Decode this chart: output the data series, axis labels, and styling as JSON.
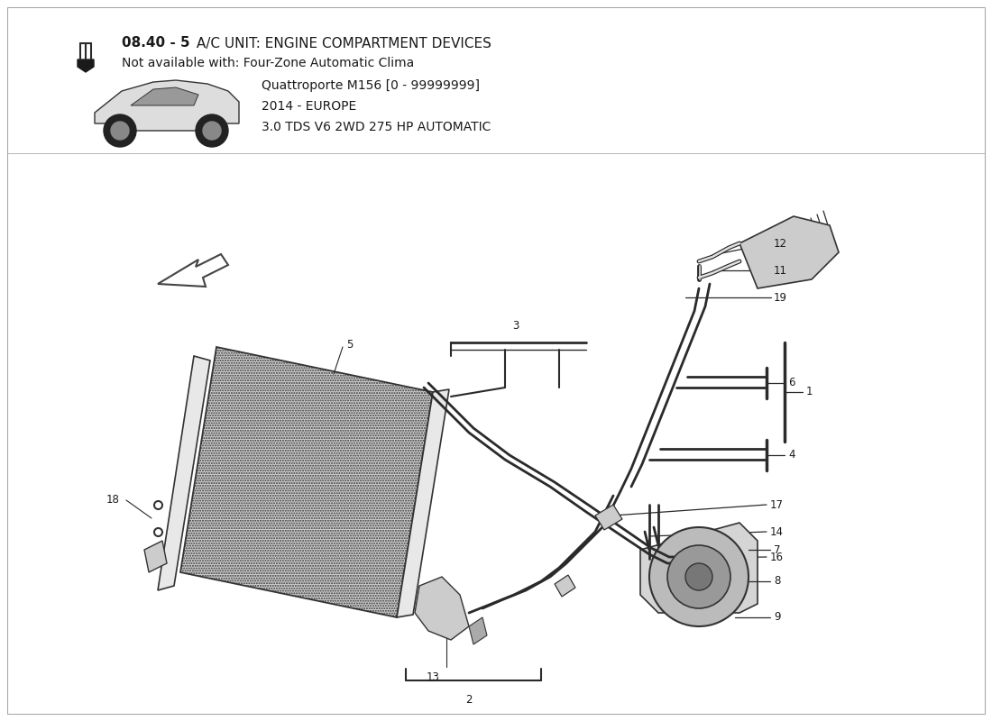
{
  "title_bold": "08.40 - 5",
  "title_rest": " A/C UNIT: ENGINE COMPARTMENT DEVICES",
  "title_line2": "Not available with: Four-Zone Automatic Clima",
  "subtitle_line1": "Quattroporte M156 [0 - 99999999]",
  "subtitle_line2": "2014 - EUROPE",
  "subtitle_line3": "3.0 TDS V6 2WD 275 HP AUTOMATIC",
  "bg_color": "#ffffff",
  "lc": "#2a2a2a",
  "tc": "#1a1a1a"
}
